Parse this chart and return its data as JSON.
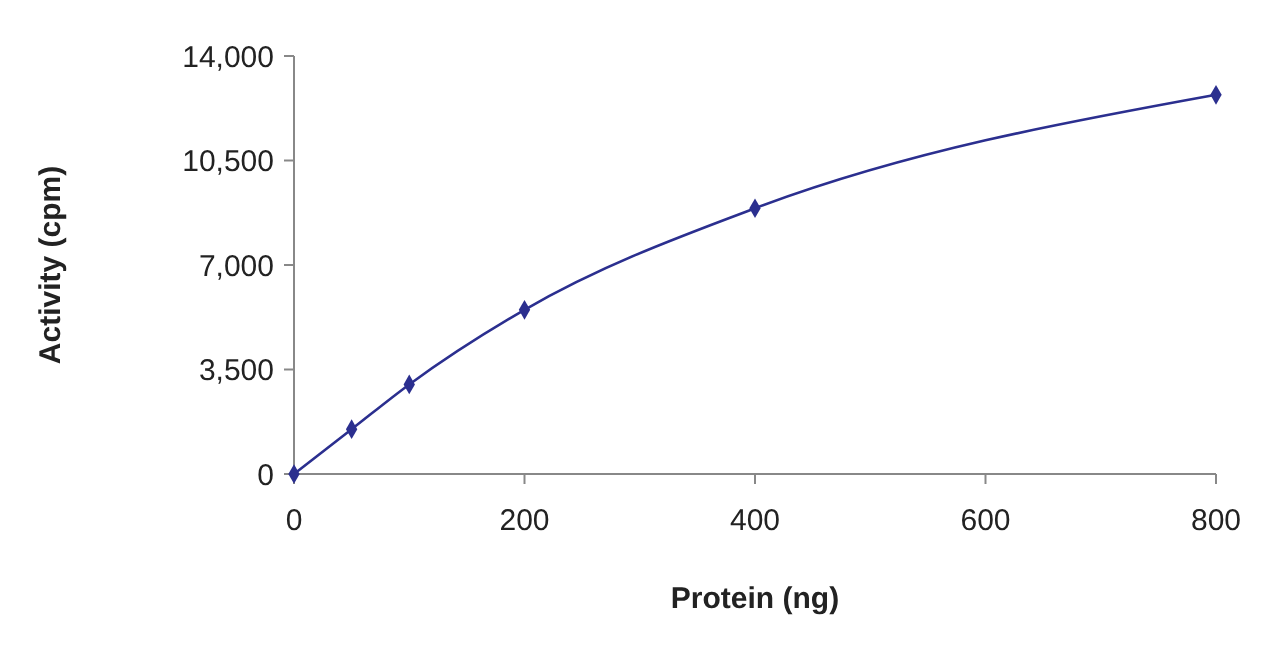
{
  "chart_data": {
    "type": "line",
    "xlabel": "Protein (ng)",
    "ylabel": "Activity (cpm)",
    "x": [
      0,
      50,
      100,
      200,
      400,
      800
    ],
    "series": [
      {
        "color": "#2b2f8f",
        "values": [
          0,
          1500,
          3000,
          5500,
          8900,
          12700
        ]
      }
    ],
    "xlim": [
      0,
      800
    ],
    "xticks": [
      0,
      200,
      400,
      600,
      800
    ],
    "ylim": [
      0,
      14000
    ],
    "yticks": [
      0,
      {
        "value": 3500,
        "label": "3,500"
      },
      {
        "value": 7000,
        "label": "7,000"
      },
      {
        "value": 10500,
        "label": "10,500"
      },
      {
        "value": 14000,
        "label": "14,000"
      }
    ],
    "marker": "diamond",
    "line_style": "solid",
    "grid": false
  }
}
